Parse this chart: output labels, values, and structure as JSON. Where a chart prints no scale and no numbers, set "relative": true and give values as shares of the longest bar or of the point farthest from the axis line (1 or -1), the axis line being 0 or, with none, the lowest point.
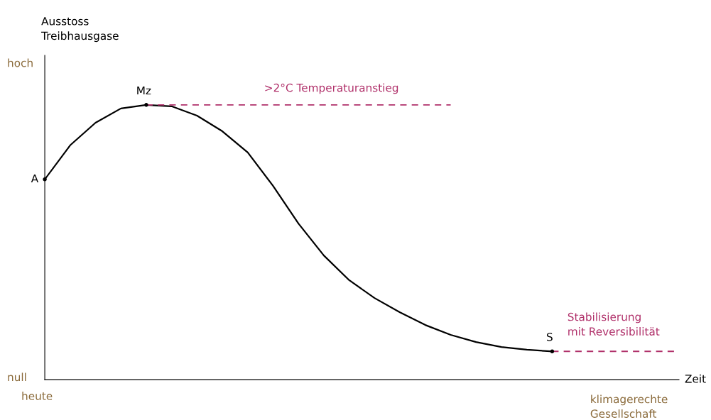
{
  "chart_data": {
    "type": "line",
    "relative": true,
    "xlabel": "Zeit",
    "categories": [
      null,
      null,
      null,
      null,
      null,
      null,
      null,
      null,
      null,
      null,
      null,
      null,
      null,
      null,
      null,
      null,
      null,
      null,
      null,
      null,
      null,
      null,
      null,
      null,
      null,
      null
    ],
    "series": [
      {
        "color": "#000000",
        "line_style": "solid",
        "values": [
          0.729,
          0.853,
          0.935,
          0.987,
          1.0,
          0.995,
          0.961,
          0.904,
          0.827,
          0.705,
          0.568,
          0.452,
          0.362,
          0.297,
          0.245,
          0.199,
          0.163,
          0.137,
          0.119,
          0.109,
          0.103,
          null,
          null,
          null,
          null,
          null
        ]
      },
      {
        "name": ">2°C Temperaturanstieg",
        "color": "#b0306a",
        "line_style": "dashed",
        "values": [
          null,
          null,
          null,
          null,
          1.0,
          1.0,
          1.0,
          1.0,
          1.0,
          1.0,
          1.0,
          1.0,
          1.0,
          1.0,
          1.0,
          1.0,
          1.0,
          null,
          null,
          null,
          null,
          null,
          null,
          null,
          null,
          null
        ]
      },
      {
        "name": "Stabilisierung\nmit Reversibilität",
        "color": "#b0306a",
        "line_style": "dashed",
        "values": [
          null,
          null,
          null,
          null,
          null,
          null,
          null,
          null,
          null,
          null,
          null,
          null,
          null,
          null,
          null,
          null,
          null,
          null,
          null,
          null,
          0.103,
          0.103,
          0.103,
          0.103,
          0.103,
          0.103
        ]
      }
    ],
    "annotations": [
      "hoch",
      "null",
      "heute",
      "klimagerechte\nGesellschaft",
      "Ausstoss\nTreibhausgase",
      "A",
      "Mz",
      "S"
    ],
    "grid": false,
    "legend": false
  }
}
